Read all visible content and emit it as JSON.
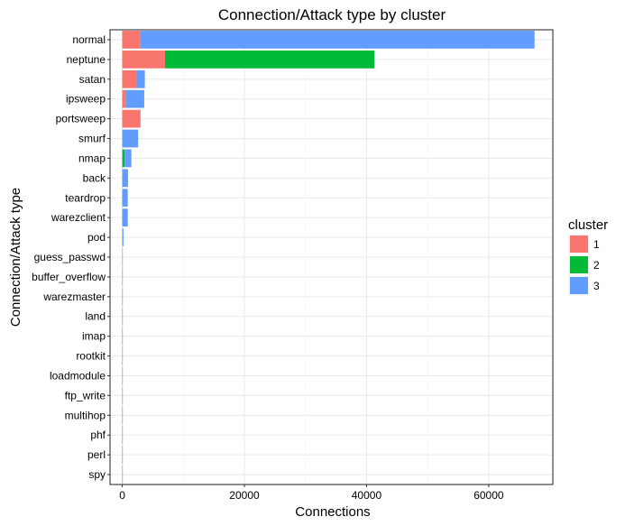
{
  "chart_data": {
    "type": "bar",
    "orientation": "horizontal",
    "stacked": true,
    "title": "Connection/Attack type by cluster",
    "xlabel": "Connections",
    "ylabel": "Connection/Attack type",
    "xlim": [
      -2000,
      70500
    ],
    "xticks": [
      0,
      20000,
      40000,
      60000
    ],
    "xtick_labels": [
      "0",
      "20000",
      "40000",
      "60000"
    ],
    "grid": true,
    "legend": {
      "title": "cluster",
      "position": "right"
    },
    "categories": [
      "normal",
      "neptune",
      "satan",
      "ipsweep",
      "portsweep",
      "smurf",
      "nmap",
      "back",
      "teardrop",
      "warezclient",
      "pod",
      "guess_passwd",
      "buffer_overflow",
      "warezmaster",
      "land",
      "imap",
      "rootkit",
      "loadmodule",
      "ftp_write",
      "multihop",
      "phf",
      "perl",
      "spy"
    ],
    "series": [
      {
        "name": "1",
        "color": "#F8766D",
        "values": [
          3000,
          7000,
          2300,
          600,
          2900,
          0,
          0,
          0,
          0,
          0,
          0,
          50,
          0,
          0,
          0,
          0,
          0,
          0,
          0,
          0,
          0,
          0,
          0
        ]
      },
      {
        "name": "2",
        "color": "#00BA38",
        "values": [
          0,
          34300,
          0,
          0,
          0,
          0,
          400,
          0,
          0,
          0,
          0,
          0,
          0,
          0,
          0,
          0,
          0,
          0,
          0,
          0,
          0,
          0,
          0
        ]
      },
      {
        "name": "3",
        "color": "#619CFF",
        "values": [
          64500,
          0,
          1400,
          3000,
          100,
          2600,
          1100,
          950,
          900,
          900,
          200,
          0,
          30,
          20,
          20,
          10,
          10,
          10,
          8,
          7,
          4,
          3,
          2
        ]
      }
    ]
  }
}
